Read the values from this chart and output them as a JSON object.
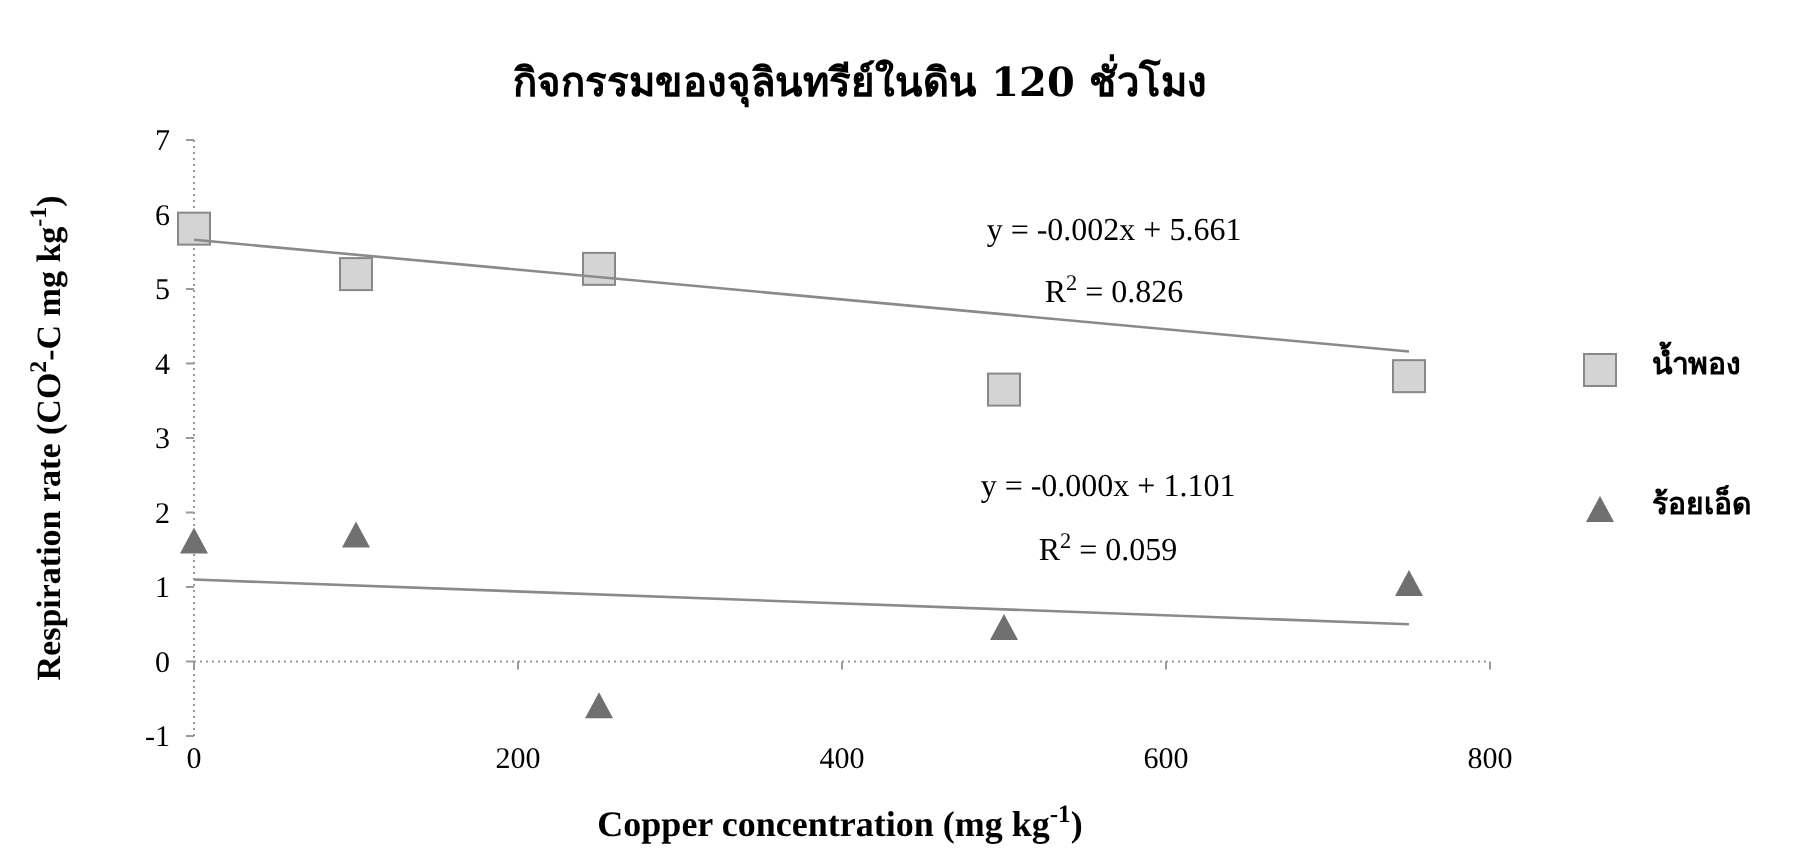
{
  "chart_data": {
    "type": "scatter",
    "title": "กิจกรรมของจุลินทรีย์ในดิน 120 ชั่วโมง",
    "xlabel": "Copper concentration (mg kg$^{-1}$)",
    "ylabel": "Respiration rate (CO$^{2}$-C mg kg$^{-1}$)",
    "xlim": [
      0,
      800
    ],
    "xticks": [
      0,
      200,
      400,
      600,
      800
    ],
    "ylim": [
      -1,
      7
    ],
    "yticks": [
      -1,
      0,
      1,
      2,
      3,
      4,
      5,
      6,
      7
    ],
    "legend": "right",
    "series": [
      {
        "name": "น้ำพอง",
        "marker": "square",
        "color": "#d4d4d4",
        "x": [
          0,
          100,
          250,
          500,
          750
        ],
        "values": [
          5.81,
          5.2,
          5.27,
          3.65,
          3.83
        ]
      },
      {
        "name": "ร้อยเอ็ด",
        "marker": "triangle",
        "color": "#707070",
        "x": [
          0,
          100,
          250,
          500,
          750
        ],
        "values": [
          1.61,
          1.69,
          -0.6,
          0.45,
          1.04
        ]
      },
      {
        "type": "line",
        "marker": "none",
        "line_style": "solid",
        "color": "#8a8a8a",
        "x": [
          0,
          750
        ],
        "values": [
          5.66,
          4.16
        ]
      },
      {
        "type": "line",
        "marker": "none",
        "line_style": "solid",
        "color": "#8a8a8a",
        "x": [
          0,
          750
        ],
        "values": [
          1.1,
          0.5
        ]
      }
    ],
    "annotations": [
      "y = -0.002x + 5.661",
      "R$^{2}$ = 0.826",
      "y = -0.000x + 1.101",
      "R$^{2}$ = 0.059"
    ]
  }
}
